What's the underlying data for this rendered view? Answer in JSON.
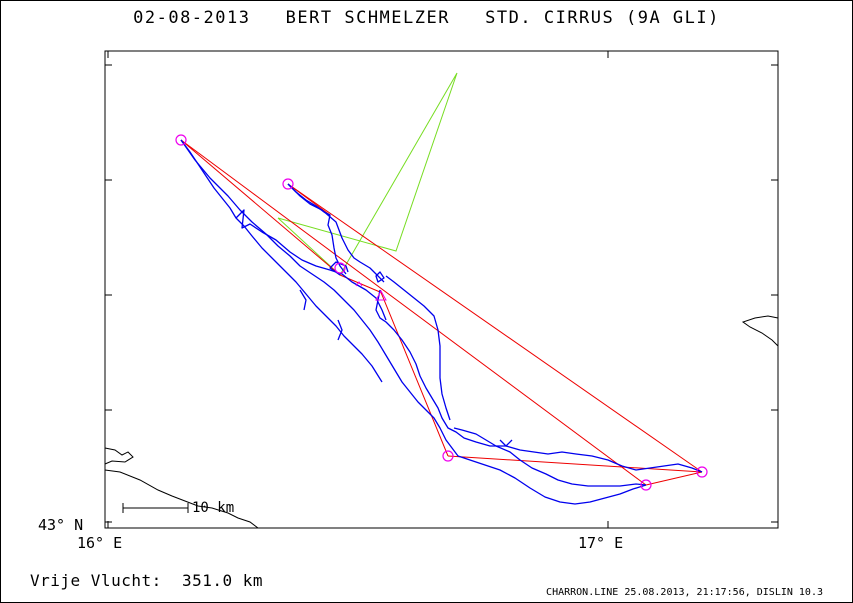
{
  "header": {
    "title": "02-08-2013   BERT SCHMELZER   STD. CIRRUS (9A GLI)"
  },
  "map": {
    "lat_label": "43° N",
    "lon_labels": [
      "16° E",
      "17° E"
    ],
    "scale_bar": {
      "label": "10 km",
      "length_km": 10
    },
    "colors": {
      "track": "#0000ee",
      "task": "#ee0000",
      "declared": "#77dd22",
      "coast": "#000000",
      "turnpoint": "#ee00ee"
    }
  },
  "footer": {
    "distance_text": "Vrije Vlucht:  351.0 km",
    "credit": "CHARRON.LINE 25.08.2013, 21:17:56, DISLIN 10.3"
  }
}
